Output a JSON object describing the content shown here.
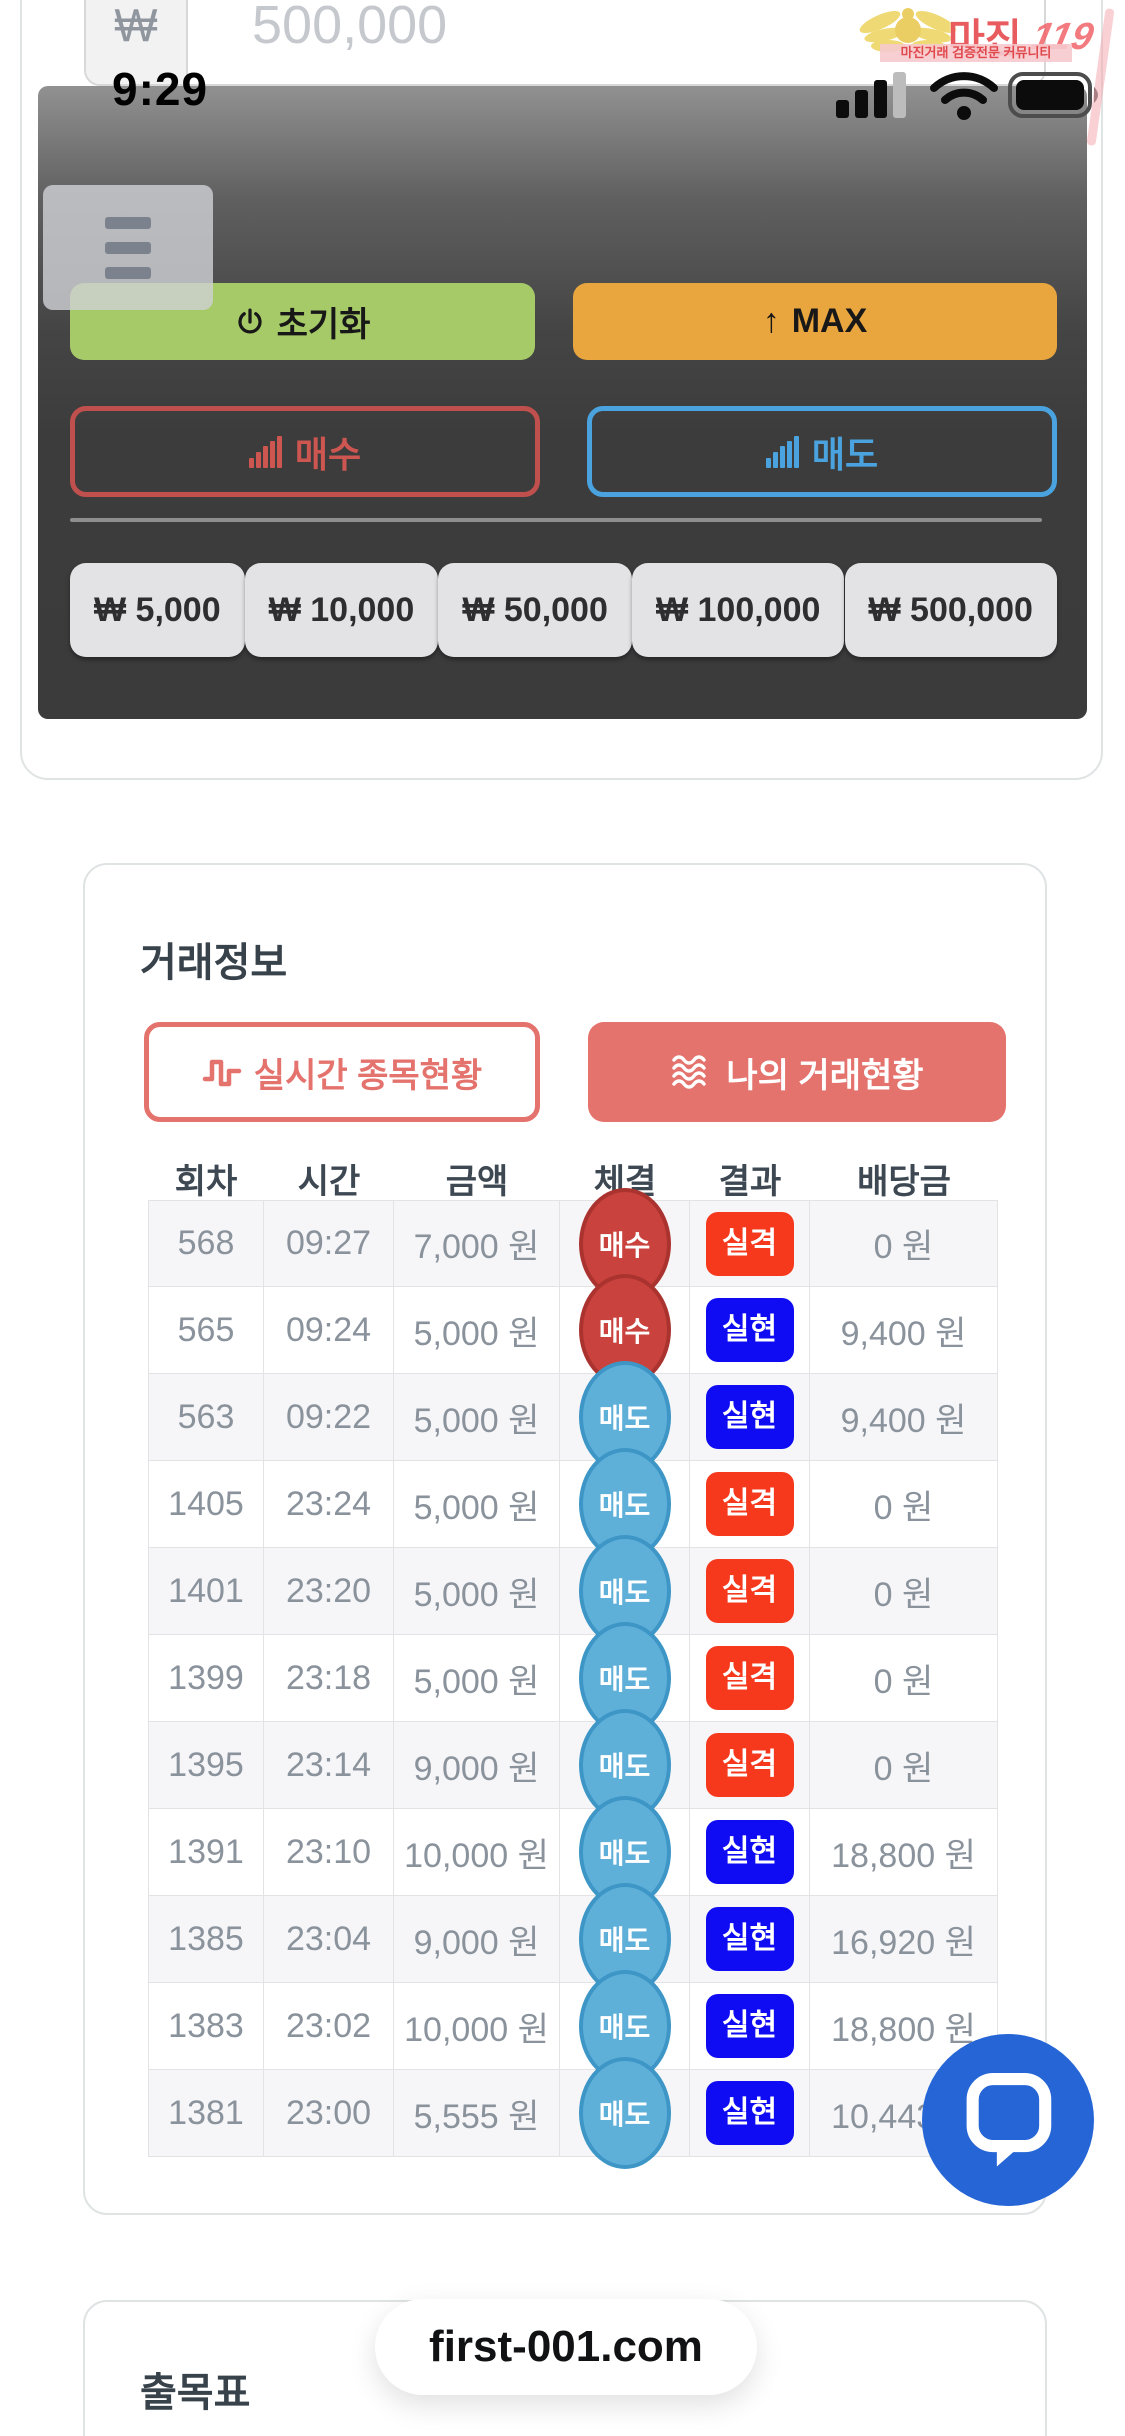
{
  "status_bar": {
    "time": "9:29"
  },
  "watermark": {
    "brand": "마진",
    "brand_number": "119",
    "tagline": "마진거래 검증전문 커뮤니티"
  },
  "amount_input": {
    "currency_prefix": "₩",
    "value": "500,000"
  },
  "panel": {
    "reset_label": "초기화",
    "max_label": "MAX",
    "buy_label": "매수",
    "sell_label": "매도",
    "quick_amounts": [
      "₩ 5,000",
      "₩ 10,000",
      "₩ 50,000",
      "₩ 100,000",
      "₩ 500,000"
    ]
  },
  "trade_info": {
    "title": "거래정보",
    "realtime_button": "실시간 종목현황",
    "my_trades_button": "나의 거래현황",
    "table": {
      "headers": [
        "회차",
        "시간",
        "금액",
        "체결",
        "결과",
        "배당금"
      ],
      "rows": [
        {
          "round": "568",
          "time": "09:27",
          "amount": "7,000 원",
          "position": "매수",
          "position_type": "buy",
          "result": "실격",
          "result_type": "fail",
          "payout": "0 원"
        },
        {
          "round": "565",
          "time": "09:24",
          "amount": "5,000 원",
          "position": "매수",
          "position_type": "buy",
          "result": "실현",
          "result_type": "win",
          "payout": "9,400 원"
        },
        {
          "round": "563",
          "time": "09:22",
          "amount": "5,000 원",
          "position": "매도",
          "position_type": "sell",
          "result": "실현",
          "result_type": "win",
          "payout": "9,400 원"
        },
        {
          "round": "1405",
          "time": "23:24",
          "amount": "5,000 원",
          "position": "매도",
          "position_type": "sell",
          "result": "실격",
          "result_type": "fail",
          "payout": "0 원"
        },
        {
          "round": "1401",
          "time": "23:20",
          "amount": "5,000 원",
          "position": "매도",
          "position_type": "sell",
          "result": "실격",
          "result_type": "fail",
          "payout": "0 원"
        },
        {
          "round": "1399",
          "time": "23:18",
          "amount": "5,000 원",
          "position": "매도",
          "position_type": "sell",
          "result": "실격",
          "result_type": "fail",
          "payout": "0 원"
        },
        {
          "round": "1395",
          "time": "23:14",
          "amount": "9,000 원",
          "position": "매도",
          "position_type": "sell",
          "result": "실격",
          "result_type": "fail",
          "payout": "0 원"
        },
        {
          "round": "1391",
          "time": "23:10",
          "amount": "10,000 원",
          "position": "매도",
          "position_type": "sell",
          "result": "실현",
          "result_type": "win",
          "payout": "18,800 원"
        },
        {
          "round": "1385",
          "time": "23:04",
          "amount": "9,000 원",
          "position": "매도",
          "position_type": "sell",
          "result": "실현",
          "result_type": "win",
          "payout": "16,920 원"
        },
        {
          "round": "1383",
          "time": "23:02",
          "amount": "10,000 원",
          "position": "매도",
          "position_type": "sell",
          "result": "실현",
          "result_type": "win",
          "payout": "18,800 원"
        },
        {
          "round": "1381",
          "time": "23:00",
          "amount": "5,555 원",
          "position": "매도",
          "position_type": "sell",
          "result": "실현",
          "result_type": "win",
          "payout": "10,443 원"
        }
      ]
    }
  },
  "footer": {
    "domain_pill": "first-001.com",
    "section_title": "출목표"
  },
  "colors": {
    "accent_green": "#a6ca67",
    "accent_orange": "#e9a53e",
    "buy_red": "#c0504d",
    "sell_blue": "#4aa3de",
    "salmon": "#e4736e",
    "fail_red": "#f6381d",
    "win_blue": "#0f0cf3",
    "chat_blue": "#2565d6",
    "panel_dark": "#3b3b3b"
  }
}
